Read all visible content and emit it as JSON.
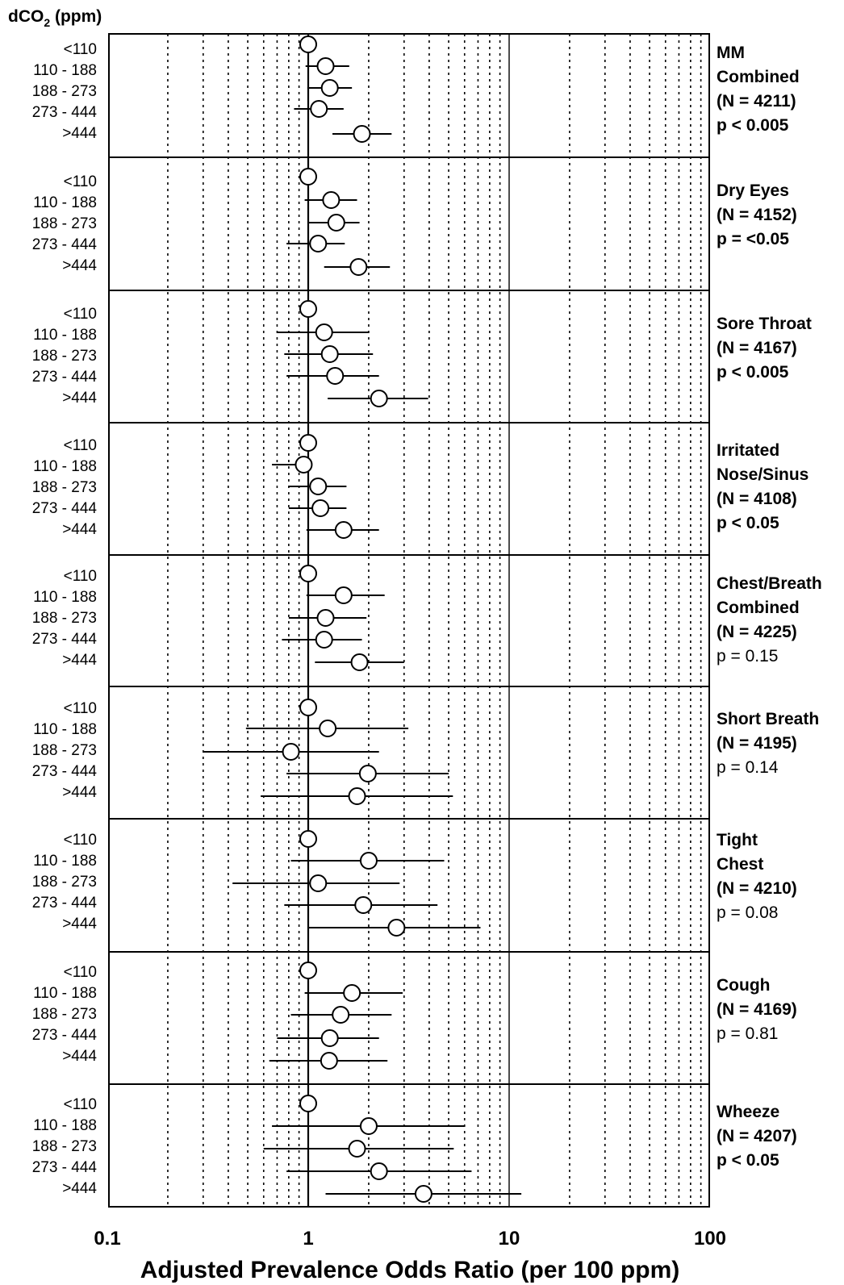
{
  "chart_data": {
    "type": "scatter",
    "subtype": "forest-plot",
    "title": "",
    "group_axis_title": "dCO2 (ppm)",
    "group_axis_title_base": "dCO",
    "group_axis_title_sub": "2",
    "group_axis_title_tail": " (ppm)",
    "xlabel": "Adjusted Prevalence Odds Ratio (per 100 ppm)",
    "xscale": "log",
    "xlim": [
      0.1,
      100
    ],
    "xticks": [
      0.1,
      1,
      10,
      100
    ],
    "xtick_labels": [
      "0.1",
      "1",
      "10",
      "100"
    ],
    "reference_line": 1,
    "grid": "dotted vertical at log minor ticks",
    "categories": [
      "<110",
      "110 - 188",
      "188 - 273",
      "273 - 444",
      ">444"
    ],
    "panels": [
      {
        "lines": [
          {
            "text": "MM",
            "bold": true
          },
          {
            "text": "Combined",
            "bold": true
          },
          {
            "text": "(N = 4211)",
            "bold": true
          },
          {
            "text": "p < 0.005",
            "bold": true
          }
        ],
        "or": [
          1.0,
          1.22,
          1.28,
          1.13,
          1.85
        ],
        "ci_low": [
          null,
          0.97,
          0.99,
          0.85,
          1.32
        ],
        "ci_high": [
          null,
          1.6,
          1.65,
          1.5,
          2.6
        ]
      },
      {
        "lines": [
          {
            "text": "Dry Eyes",
            "bold": true
          },
          {
            "text": "(N = 4152)",
            "bold": true
          },
          {
            "text": "p = <0.05",
            "bold": true
          }
        ],
        "or": [
          1.0,
          1.3,
          1.38,
          1.12,
          1.78
        ],
        "ci_low": [
          null,
          0.96,
          1.0,
          0.78,
          1.2
        ],
        "ci_high": [
          null,
          1.75,
          1.8,
          1.52,
          2.55
        ]
      },
      {
        "lines": [
          {
            "text": "Sore Throat",
            "bold": true
          },
          {
            "text": "(N = 4167)",
            "bold": true
          },
          {
            "text": "p < 0.005",
            "bold": true
          }
        ],
        "or": [
          1.0,
          1.2,
          1.28,
          1.36,
          2.25
        ],
        "ci_low": [
          null,
          0.7,
          0.76,
          0.78,
          1.25
        ],
        "ci_high": [
          null,
          2.0,
          2.1,
          2.25,
          3.95
        ]
      },
      {
        "lines": [
          {
            "text": "Irritated",
            "bold": true
          },
          {
            "text": "Nose/Sinus",
            "bold": true
          },
          {
            "text": "(N = 4108)",
            "bold": true
          },
          {
            "text": "p < 0.05",
            "bold": true
          }
        ],
        "or": [
          1.0,
          0.95,
          1.12,
          1.15,
          1.5
        ],
        "ci_low": [
          null,
          0.66,
          0.8,
          0.8,
          0.98
        ],
        "ci_high": [
          null,
          1.0,
          1.55,
          1.55,
          2.25
        ]
      },
      {
        "lines": [
          {
            "text": "Chest/Breath",
            "bold": true
          },
          {
            "text": "Combined",
            "bold": true
          },
          {
            "text": "(N = 4225)",
            "bold": true
          },
          {
            "text": "p = 0.15",
            "bold": false
          }
        ],
        "or": [
          1.0,
          1.5,
          1.22,
          1.2,
          1.8
        ],
        "ci_low": [
          null,
          0.98,
          0.8,
          0.74,
          1.08
        ],
        "ci_high": [
          null,
          2.4,
          1.95,
          1.85,
          3.0
        ]
      },
      {
        "lines": [
          {
            "text": "Short Breath",
            "bold": true
          },
          {
            "text": "(N = 4195)",
            "bold": true
          },
          {
            "text": "p = 0.14",
            "bold": false
          }
        ],
        "or": [
          1.0,
          1.25,
          0.82,
          1.98,
          1.75
        ],
        "ci_low": [
          null,
          0.49,
          0.3,
          0.78,
          0.58
        ],
        "ci_high": [
          null,
          3.15,
          2.25,
          5.0,
          5.25
        ]
      },
      {
        "lines": [
          {
            "text": "Tight",
            "bold": true
          },
          {
            "text": "Chest",
            "bold": true
          },
          {
            "text": "(N = 4210)",
            "bold": true
          },
          {
            "text": "p = 0.08",
            "bold": false
          }
        ],
        "or": [
          1.0,
          2.0,
          1.12,
          1.88,
          2.75
        ],
        "ci_low": [
          null,
          0.82,
          0.42,
          0.76,
          1.0
        ],
        "ci_high": [
          null,
          4.75,
          2.85,
          4.4,
          7.2
        ]
      },
      {
        "lines": [
          {
            "text": "Cough",
            "bold": true
          },
          {
            "text": "(N = 4169)",
            "bold": true
          },
          {
            "text": "p = 0.81",
            "bold": false
          }
        ],
        "or": [
          1.0,
          1.65,
          1.45,
          1.28,
          1.27
        ],
        "ci_low": [
          null,
          0.96,
          0.82,
          0.7,
          0.64
        ],
        "ci_high": [
          null,
          2.95,
          2.6,
          2.25,
          2.48
        ]
      },
      {
        "lines": [
          {
            "text": "Wheeze",
            "bold": true
          },
          {
            "text": "(N = 4207)",
            "bold": true
          },
          {
            "text": "p < 0.05",
            "bold": true
          }
        ],
        "or": [
          1.0,
          2.0,
          1.75,
          2.25,
          3.75
        ],
        "ci_low": [
          null,
          0.66,
          0.6,
          0.78,
          1.22
        ],
        "ci_high": [
          null,
          6.0,
          5.3,
          6.5,
          11.5
        ]
      }
    ]
  }
}
